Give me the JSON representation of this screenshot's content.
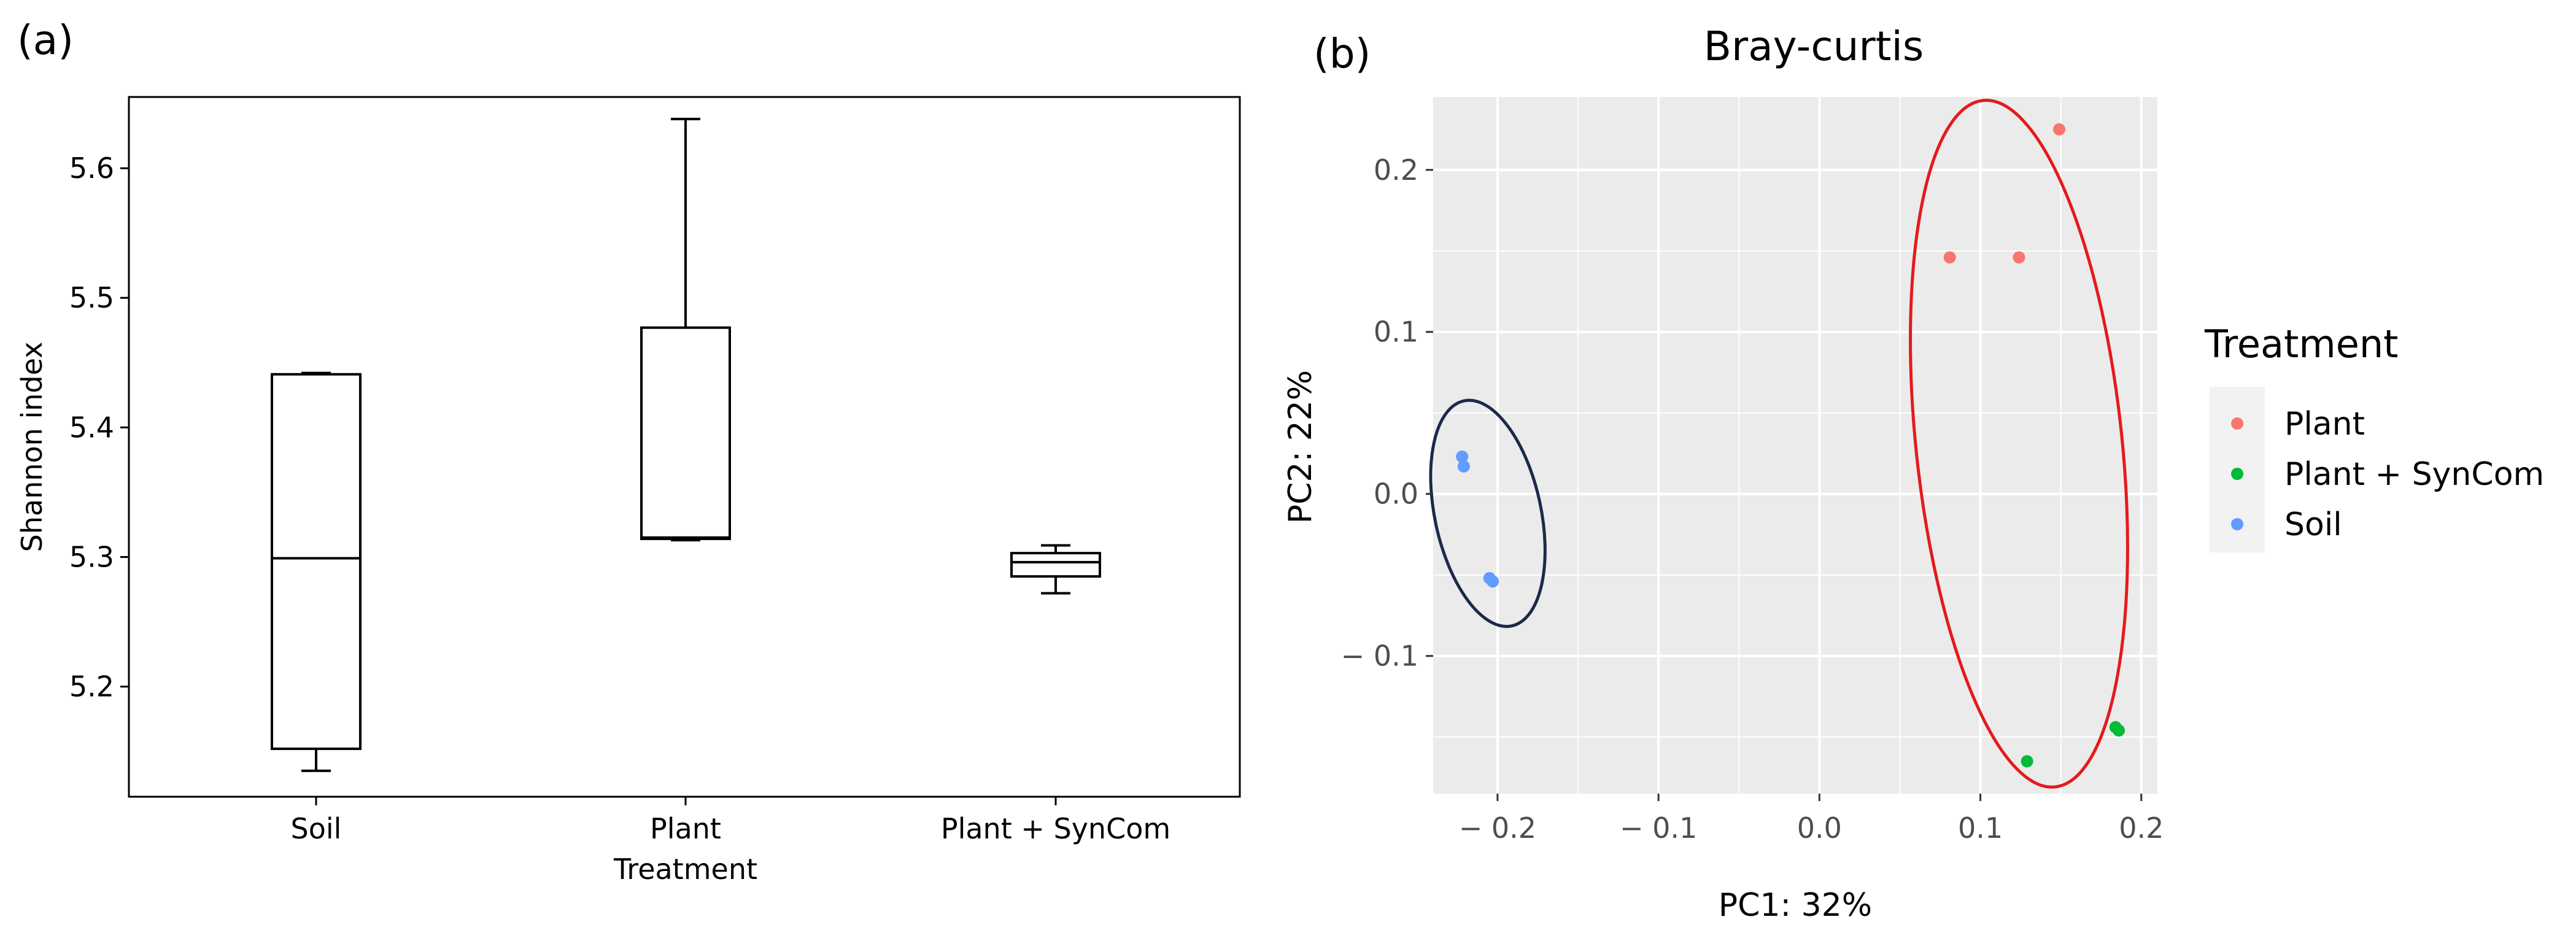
{
  "panel_labels": {
    "a": "(a)",
    "b": "(b)"
  },
  "chart_data": [
    {
      "type": "box",
      "title": "",
      "xlabel": "Treatment",
      "ylabel": "Shannon index",
      "ylim": [
        5.115,
        5.655
      ],
      "yticks": [
        5.2,
        5.3,
        5.4,
        5.5,
        5.6
      ],
      "ytick_labels": [
        "5.2",
        "5.3",
        "5.4",
        "5.5",
        "5.6"
      ],
      "categories": [
        "Soil",
        "Plant",
        "Plant + SynCom"
      ],
      "boxes": [
        {
          "name": "Soil",
          "min": 5.135,
          "q1": 5.152,
          "median": 5.299,
          "q3": 5.441,
          "max": 5.442
        },
        {
          "name": "Plant",
          "min": 5.313,
          "q1": 5.314,
          "median": 5.315,
          "q3": 5.477,
          "max": 5.638
        },
        {
          "name": "Plant + SynCom",
          "min": 5.272,
          "q1": 5.285,
          "median": 5.296,
          "q3": 5.303,
          "max": 5.309
        }
      ]
    },
    {
      "type": "scatter",
      "title": "Bray-curtis",
      "xlabel": "PC1: 32%",
      "ylabel": "PC2: 22%",
      "xlim": [
        -0.24,
        0.21
      ],
      "ylim": [
        -0.185,
        0.245
      ],
      "xticks": [
        -0.2,
        -0.1,
        0.0,
        0.1,
        0.2
      ],
      "xtick_labels": [
        "− 0.2",
        "− 0.1",
        "0.0",
        "0.1",
        "0.2"
      ],
      "yticks": [
        -0.1,
        0.0,
        0.1,
        0.2
      ],
      "ytick_labels": [
        "− 0.1",
        "0.0",
        "0.1",
        "0.2"
      ],
      "grid": true,
      "legend": {
        "title": "Treatment",
        "placement": "right"
      },
      "series": [
        {
          "name": "Plant",
          "color": "#F8766D",
          "points": [
            [
              0.149,
              0.225
            ],
            [
              0.081,
              0.146
            ],
            [
              0.124,
              0.146
            ]
          ]
        },
        {
          "name": "Plant + SynCom",
          "color": "#00BA38",
          "points": [
            [
              0.184,
              -0.144
            ],
            [
              0.186,
              -0.146
            ],
            [
              0.129,
              -0.165
            ]
          ]
        },
        {
          "name": "Soil",
          "color": "#619CFF",
          "points": [
            [
              -0.222,
              0.023
            ],
            [
              -0.221,
              0.017
            ],
            [
              -0.205,
              -0.052
            ],
            [
              -0.203,
              -0.054
            ]
          ]
        }
      ],
      "ellipses": [
        {
          "group": "Soil",
          "color": "#1b2a49",
          "cx": -0.206,
          "cy": -0.012,
          "rx": 0.033,
          "ry": 0.071,
          "angle_deg": -12
        },
        {
          "group": "Plant + Plant + SynCom",
          "color": "#e41a1c",
          "cx": 0.124,
          "cy": 0.031,
          "rx": 0.064,
          "ry": 0.213,
          "angle_deg": -6
        }
      ]
    }
  ]
}
